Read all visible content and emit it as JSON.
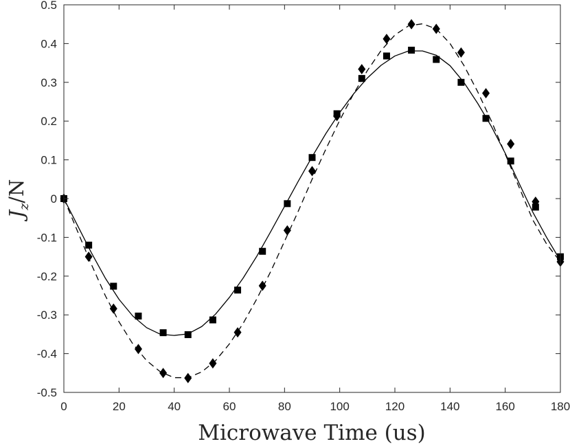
{
  "chart_data": {
    "type": "line",
    "title": "",
    "xlabel": "Microwave Time (us)",
    "ylabel": {
      "main": "J",
      "subscript": "z",
      "suffix": "/N"
    },
    "xlim": [
      0,
      180
    ],
    "ylim": [
      -0.5,
      0.5
    ],
    "xticks": [
      0,
      20,
      40,
      60,
      80,
      100,
      120,
      140,
      160,
      180
    ],
    "xtick_labels": [
      "0",
      "20",
      "40",
      "60",
      "80",
      "100",
      "120",
      "140",
      "160",
      "180"
    ],
    "yticks": [
      0.5,
      0.4,
      0.3,
      0.2,
      0.1,
      0,
      -0.1,
      -0.2,
      -0.3,
      -0.4,
      -0.5
    ],
    "ytick_labels": [
      "0.5",
      "0.4",
      "0.3",
      "0.2",
      "0.1",
      "0",
      "-0.1",
      "-0.2",
      "-0.3",
      "-0.4",
      "-0.5"
    ],
    "grid": false,
    "box": true,
    "series": [
      {
        "name": "squares",
        "marker": "square",
        "line_style": "solid",
        "color": "#000000",
        "x": [
          0,
          9,
          18,
          27,
          36,
          45,
          54,
          63,
          72,
          81,
          90,
          99,
          108,
          117,
          126,
          135,
          144,
          153,
          162,
          171,
          180
        ],
        "y": [
          0,
          -0.12,
          -0.226,
          -0.303,
          -0.346,
          -0.351,
          -0.313,
          -0.236,
          -0.136,
          -0.013,
          0.106,
          0.219,
          0.31,
          0.368,
          0.383,
          0.359,
          0.3,
          0.207,
          0.097,
          -0.022,
          -0.15
        ],
        "fit": {
          "x": [
            0,
            5,
            10,
            15,
            20,
            25,
            30,
            35,
            40,
            45,
            50,
            55,
            60,
            65,
            70,
            75,
            80,
            85,
            90,
            95,
            100,
            105,
            110,
            115,
            120,
            125,
            130,
            135,
            140,
            145,
            150,
            155,
            160,
            165,
            170,
            175,
            180
          ],
          "y": [
            0,
            -0.07,
            -0.14,
            -0.205,
            -0.26,
            -0.303,
            -0.333,
            -0.35,
            -0.353,
            -0.349,
            -0.33,
            -0.298,
            -0.255,
            -0.205,
            -0.148,
            -0.085,
            -0.02,
            0.045,
            0.108,
            0.168,
            0.222,
            0.27,
            0.311,
            0.344,
            0.368,
            0.381,
            0.381,
            0.37,
            0.343,
            0.3,
            0.246,
            0.186,
            0.117,
            0.04,
            -0.035,
            -0.1,
            -0.16
          ]
        }
      },
      {
        "name": "diamonds",
        "marker": "diamond",
        "line_style": "dashed",
        "color": "#000000",
        "x": [
          0,
          9,
          18,
          27,
          36,
          45,
          54,
          63,
          72,
          81,
          90,
          99,
          108,
          117,
          126,
          135,
          144,
          153,
          162,
          171,
          180
        ],
        "y": [
          0,
          -0.15,
          -0.284,
          -0.388,
          -0.45,
          -0.463,
          -0.425,
          -0.345,
          -0.225,
          -0.082,
          0.071,
          0.213,
          0.334,
          0.412,
          0.45,
          0.438,
          0.377,
          0.272,
          0.141,
          -0.008,
          -0.163
        ],
        "fit": {
          "x": [
            0,
            5,
            10,
            15,
            20,
            25,
            30,
            35,
            40,
            45,
            50,
            55,
            60,
            65,
            70,
            75,
            80,
            85,
            90,
            95,
            100,
            105,
            110,
            115,
            120,
            125,
            130,
            135,
            140,
            145,
            150,
            155,
            160,
            165,
            170,
            175,
            180
          ],
          "y": [
            0,
            -0.085,
            -0.17,
            -0.25,
            -0.318,
            -0.375,
            -0.418,
            -0.447,
            -0.462,
            -0.462,
            -0.447,
            -0.418,
            -0.375,
            -0.322,
            -0.258,
            -0.188,
            -0.11,
            -0.032,
            0.05,
            0.128,
            0.202,
            0.27,
            0.33,
            0.382,
            0.422,
            0.446,
            0.451,
            0.438,
            0.4,
            0.344,
            0.276,
            0.2,
            0.115,
            0.03,
            -0.055,
            -0.117,
            -0.163
          ]
        }
      }
    ]
  }
}
